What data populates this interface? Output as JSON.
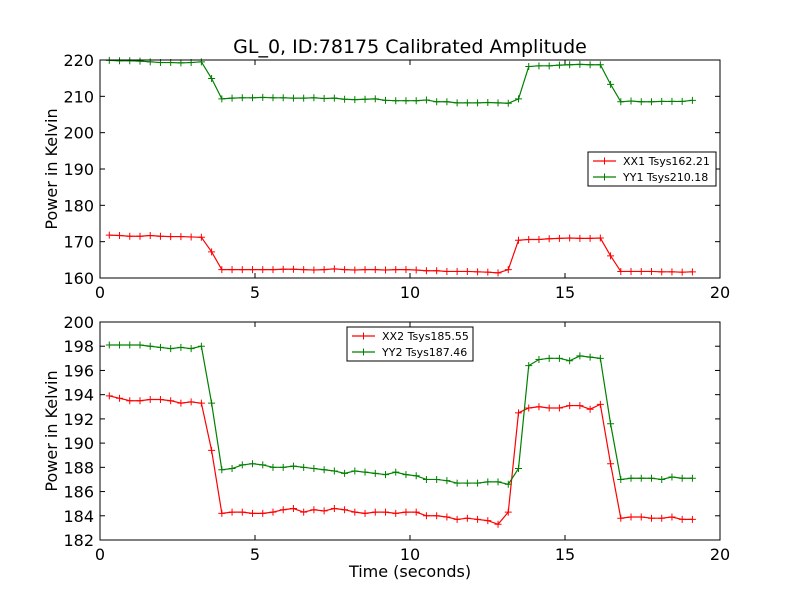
{
  "figure": {
    "title": "GL_0, ID:78175 Calibrated Amplitude"
  },
  "chart_data": [
    {
      "type": "line",
      "title": "GL_0, ID:78175 Calibrated Amplitude",
      "xlabel": "",
      "ylabel": "Power in Kelvin",
      "xlim": [
        0,
        20
      ],
      "ylim": [
        160,
        220
      ],
      "xticks": [
        "0",
        "5",
        "10",
        "15",
        "20"
      ],
      "yticks": [
        "160",
        "170",
        "180",
        "190",
        "200",
        "210",
        "220"
      ],
      "grid": false,
      "legend_position": "center-right",
      "x": [
        0.3,
        0.63,
        0.96,
        1.29,
        1.62,
        1.95,
        2.28,
        2.61,
        2.94,
        3.27,
        3.6,
        3.93,
        4.26,
        4.59,
        4.92,
        5.25,
        5.58,
        5.91,
        6.24,
        6.57,
        6.9,
        7.23,
        7.56,
        7.89,
        8.22,
        8.55,
        8.88,
        9.21,
        9.54,
        9.87,
        10.2,
        10.53,
        10.86,
        11.19,
        11.52,
        11.85,
        12.18,
        12.51,
        12.84,
        13.17,
        13.5,
        13.83,
        14.16,
        14.49,
        14.82,
        15.15,
        15.48,
        15.81,
        16.14,
        16.47,
        16.8,
        17.13,
        17.46,
        17.79,
        18.12,
        18.45,
        18.78,
        19.11
      ],
      "series": [
        {
          "name": "XX1 Tsys162.21",
          "color": "#ff0000",
          "values": [
            171.8,
            171.7,
            171.5,
            171.5,
            171.7,
            171.5,
            171.4,
            171.4,
            171.3,
            171.2,
            167.2,
            162.3,
            162.3,
            162.3,
            162.3,
            162.3,
            162.3,
            162.4,
            162.4,
            162.3,
            162.2,
            162.3,
            162.5,
            162.3,
            162.2,
            162.3,
            162.3,
            162.2,
            162.3,
            162.3,
            162.2,
            162.0,
            162.0,
            161.8,
            161.8,
            161.8,
            161.7,
            161.6,
            161.4,
            162.3,
            170.4,
            170.6,
            170.6,
            170.8,
            170.9,
            171.0,
            170.9,
            170.9,
            171.0,
            166.1,
            161.8,
            161.8,
            161.8,
            161.8,
            161.7,
            161.7,
            161.6,
            161.7
          ]
        },
        {
          "name": "YY1 Tsys210.18",
          "color": "#008000",
          "values": [
            219.9,
            219.8,
            219.8,
            219.7,
            219.5,
            219.3,
            219.3,
            219.2,
            219.3,
            219.5,
            214.9,
            209.3,
            209.5,
            209.6,
            209.6,
            209.7,
            209.6,
            209.6,
            209.5,
            209.5,
            209.6,
            209.4,
            209.5,
            209.2,
            209.1,
            209.2,
            209.3,
            208.9,
            208.8,
            208.8,
            208.8,
            209.0,
            208.5,
            208.5,
            208.2,
            208.2,
            208.2,
            208.3,
            208.2,
            208.1,
            209.3,
            218.2,
            218.4,
            218.4,
            218.6,
            218.7,
            218.8,
            218.7,
            218.7,
            213.3,
            208.5,
            208.7,
            208.5,
            208.5,
            208.6,
            208.6,
            208.6,
            208.9
          ]
        }
      ]
    },
    {
      "type": "line",
      "title": "",
      "xlabel": "Time (seconds)",
      "ylabel": "Power in Kelvin",
      "xlim": [
        0,
        20
      ],
      "ylim": [
        182,
        200
      ],
      "xticks": [
        "0",
        "5",
        "10",
        "15",
        "20"
      ],
      "yticks": [
        "182",
        "184",
        "186",
        "188",
        "190",
        "192",
        "194",
        "196",
        "198",
        "200"
      ],
      "grid": false,
      "legend_position": "top-center",
      "x": [
        0.3,
        0.63,
        0.96,
        1.29,
        1.62,
        1.95,
        2.28,
        2.61,
        2.94,
        3.27,
        3.6,
        3.93,
        4.26,
        4.59,
        4.92,
        5.25,
        5.58,
        5.91,
        6.24,
        6.57,
        6.9,
        7.23,
        7.56,
        7.89,
        8.22,
        8.55,
        8.88,
        9.21,
        9.54,
        9.87,
        10.2,
        10.53,
        10.86,
        11.19,
        11.52,
        11.85,
        12.18,
        12.51,
        12.84,
        13.17,
        13.5,
        13.83,
        14.16,
        14.49,
        14.82,
        15.15,
        15.48,
        15.81,
        16.14,
        16.47,
        16.8,
        17.13,
        17.46,
        17.79,
        18.12,
        18.45,
        18.78,
        19.11
      ],
      "series": [
        {
          "name": "XX2 Tsys185.55",
          "color": "#ff0000",
          "values": [
            193.9,
            193.7,
            193.5,
            193.5,
            193.6,
            193.6,
            193.5,
            193.3,
            193.4,
            193.3,
            189.4,
            184.2,
            184.3,
            184.3,
            184.2,
            184.2,
            184.3,
            184.5,
            184.6,
            184.3,
            184.5,
            184.4,
            184.6,
            184.5,
            184.3,
            184.2,
            184.3,
            184.3,
            184.2,
            184.3,
            184.3,
            184.0,
            184.0,
            183.9,
            183.7,
            183.8,
            183.7,
            183.6,
            183.3,
            184.3,
            192.5,
            192.9,
            193.0,
            192.9,
            192.9,
            193.1,
            193.1,
            192.8,
            193.2,
            188.3,
            183.8,
            183.9,
            183.9,
            183.8,
            183.8,
            183.9,
            183.7,
            183.7
          ]
        },
        {
          "name": "YY2 Tsys187.46",
          "color": "#008000",
          "values": [
            198.1,
            198.1,
            198.1,
            198.1,
            198.0,
            197.9,
            197.8,
            197.9,
            197.8,
            198.0,
            193.3,
            187.8,
            187.9,
            188.2,
            188.3,
            188.2,
            188.0,
            188.0,
            188.1,
            188.0,
            187.9,
            187.8,
            187.7,
            187.5,
            187.7,
            187.6,
            187.5,
            187.4,
            187.6,
            187.4,
            187.3,
            187.0,
            187.0,
            186.9,
            186.7,
            186.7,
            186.7,
            186.8,
            186.8,
            186.6,
            187.9,
            196.4,
            196.9,
            197.0,
            197.0,
            196.8,
            197.2,
            197.1,
            197.0,
            191.6,
            187.0,
            187.1,
            187.1,
            187.1,
            187.0,
            187.2,
            187.1,
            187.1
          ]
        }
      ]
    }
  ]
}
